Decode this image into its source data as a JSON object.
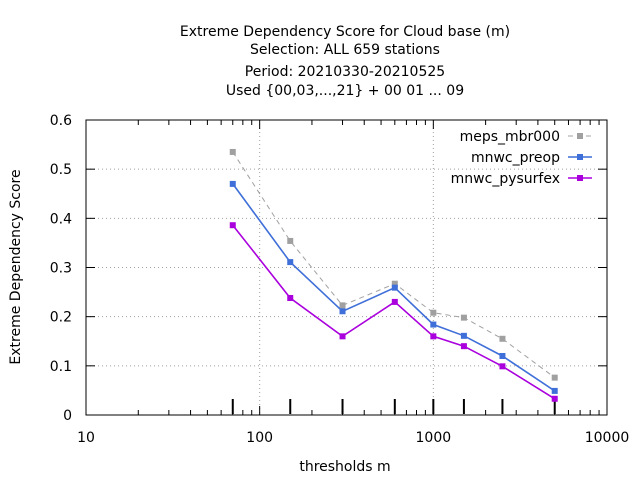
{
  "chart_data": {
    "type": "line",
    "title": [
      "Extreme Dependency Score  for Cloud base (m)",
      "Selection: ALL    659 stations",
      "Period: 20210330-20210525",
      "Used {00,03,...,21} + 00 01 ... 09"
    ],
    "xlabel": "thresholds m",
    "ylabel": "Extreme Dependency Score",
    "xscale": "log",
    "xlim": [
      10,
      10000
    ],
    "ylim": [
      0,
      0.6
    ],
    "x_ticks": [
      10,
      100,
      1000,
      10000
    ],
    "x_tick_labels": [
      "10",
      "100",
      "1000",
      "10000"
    ],
    "y_ticks": [
      0,
      0.1,
      0.2,
      0.3,
      0.4,
      0.5,
      0.6
    ],
    "y_tick_labels": [
      "0",
      "0.1",
      "0.2",
      "0.3",
      "0.4",
      "0.5",
      "0.6"
    ],
    "grid": true,
    "legend_position": "top-right",
    "thresholds": [
      70,
      150,
      300,
      600,
      1000,
      1500,
      2500,
      5000
    ],
    "series": [
      {
        "name": "meps_mbr000",
        "color": "#a0a0a0",
        "dashed": true,
        "x": [
          70,
          150,
          300,
          600,
          1000,
          1500,
          2500,
          5000
        ],
        "values": [
          0.535,
          0.354,
          0.223,
          0.267,
          0.208,
          0.198,
          0.155,
          0.076
        ]
      },
      {
        "name": "mnwc_preop",
        "color": "#3f6fd8",
        "dashed": false,
        "x": [
          70,
          150,
          300,
          600,
          1000,
          1500,
          2500,
          5000
        ],
        "values": [
          0.47,
          0.311,
          0.211,
          0.259,
          0.184,
          0.161,
          0.12,
          0.049
        ]
      },
      {
        "name": "mnwc_pysurfex",
        "color": "#aa00dd",
        "dashed": false,
        "x": [
          70,
          150,
          300,
          600,
          1000,
          1500,
          2500,
          5000
        ],
        "values": [
          0.386,
          0.238,
          0.16,
          0.23,
          0.16,
          0.14,
          0.099,
          0.033
        ]
      }
    ]
  }
}
